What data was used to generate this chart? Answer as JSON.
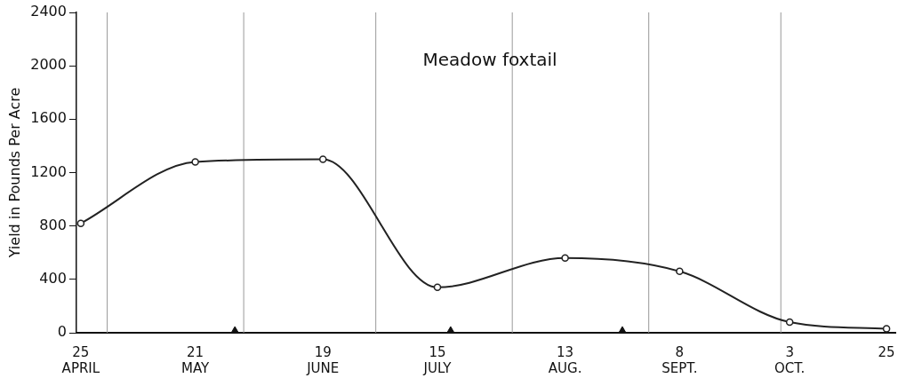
{
  "chart_data": {
    "type": "line",
    "title": "Meadow foxtail",
    "ylabel": "Yield in Pounds Per Acre",
    "xlim": [
      "--04-24",
      "--10-27"
    ],
    "xticks": [
      {
        "value": "--04-25",
        "label": "25\nAPRIL"
      },
      {
        "value": "--05-21",
        "label": "21\nMAY"
      },
      {
        "value": "--06-19",
        "label": "19\nJUNE"
      },
      {
        "value": "--07-15",
        "label": "15\nJULY"
      },
      {
        "value": "--08-13",
        "label": "13\nAUG."
      },
      {
        "value": "--09-08",
        "label": "8\nSEPT."
      },
      {
        "value": "--10-03",
        "label": "3\nOCT."
      },
      {
        "value": "--10-25",
        "label": "25"
      }
    ],
    "ylim": [
      0,
      2400
    ],
    "yticks": [
      0,
      400,
      800,
      1200,
      1600,
      2000,
      2400
    ],
    "series": [
      {
        "color": "#222222",
        "marker": "circle",
        "x": [
          "--04-25",
          "--05-21",
          "--06-19",
          "--07-15",
          "--08-13",
          "--09-08",
          "--10-03",
          "--10-25"
        ],
        "values": [
          820,
          1280,
          1300,
          340,
          560,
          460,
          80,
          30
        ]
      },
      {
        "type": "scatter",
        "color": "#111111",
        "marker": "triangle",
        "x": [
          "--05-30",
          "--07-18",
          "--08-26"
        ],
        "values": [
          0,
          0,
          0
        ]
      }
    ],
    "ref_lines": [
      {
        "axis": "x",
        "value": "--05-01",
        "label": null,
        "color": "#999999"
      },
      {
        "axis": "x",
        "value": "--06-01",
        "label": null,
        "color": "#999999"
      },
      {
        "axis": "x",
        "value": "--07-01",
        "label": null,
        "color": "#999999"
      },
      {
        "axis": "x",
        "value": "--08-01",
        "label": null,
        "color": "#999999"
      },
      {
        "axis": "x",
        "value": "--09-01",
        "label": null,
        "color": "#999999"
      },
      {
        "axis": "x",
        "value": "--10-01",
        "label": null,
        "color": "#999999"
      }
    ],
    "grid": false,
    "legend": false
  }
}
